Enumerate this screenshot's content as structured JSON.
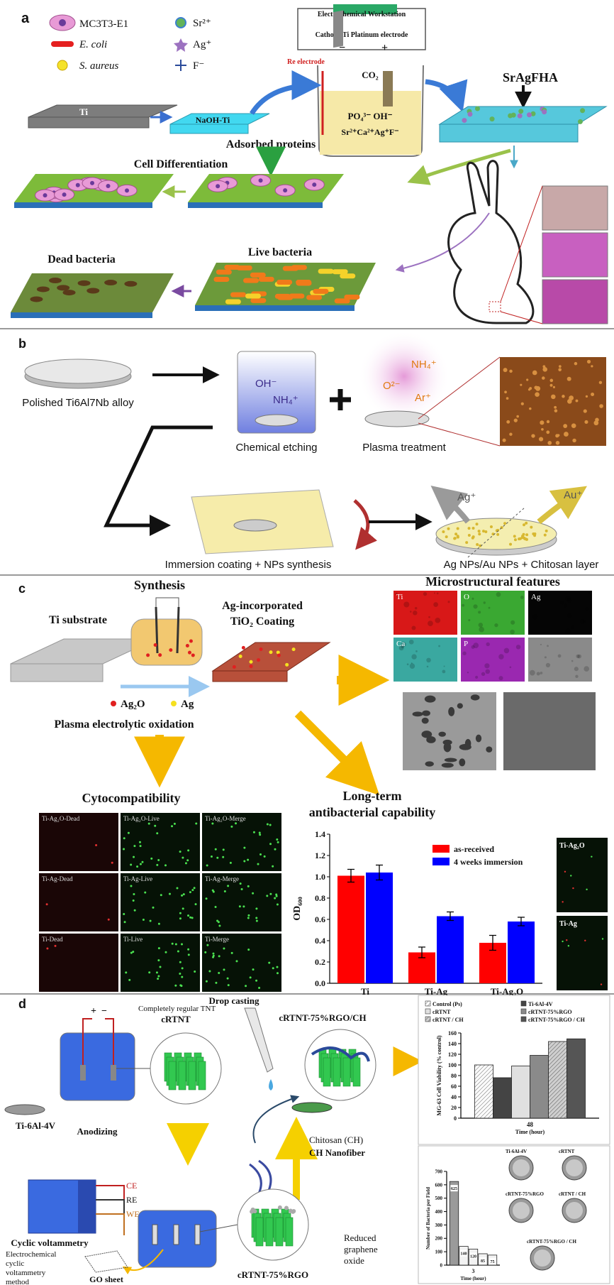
{
  "panel_a": {
    "label": "a",
    "legend": [
      "MC3T3-E1",
      "E. coli",
      "S. aureus",
      "Sr²⁺",
      "Ag⁺",
      "F⁻"
    ],
    "workstation": "Electrochemical Workstation",
    "electrodes": "Cathode Ti Platinum electrode",
    "re_electrode": "Re electrode",
    "minus": "−",
    "plus": "+",
    "gas": "CO₂",
    "anions": "PO₄³⁻ OH⁻",
    "cations": "Sr²⁺Ca²⁺Ag⁺F⁻",
    "substrate": "Ti",
    "treated": "NaOH-Ti",
    "coating": "SrAgFHA",
    "steps": [
      "Adsorbed proteins",
      "Cell Differentiation",
      "Live bacteria",
      "Dead bacteria"
    ]
  },
  "panel_b": {
    "label": "b",
    "alloy": "Polished Ti6Al7Nb alloy",
    "etch_ions": [
      "OH⁻",
      "NH₄⁺"
    ],
    "etching": "Chemical etching",
    "plasma_ions": [
      "NH₄⁺",
      "O²⁻",
      "Ar⁺"
    ],
    "plasma": "Plasma treatment",
    "immersion": "Immersion coating + NPs synthesis",
    "release_ions": [
      "Ag⁺",
      "Au⁺"
    ],
    "result": "Ag NPs/Au NPs + Chitosan layer"
  },
  "panel_c": {
    "label": "c",
    "synthesis": "Synthesis",
    "substrate": "Ti substrate",
    "coating": [
      "Ag-incorporated",
      "TiO₂ Coating"
    ],
    "particles": [
      "Ag₂O",
      "Ag"
    ],
    "process": "Plasma electrolytic oxidation",
    "micro_title": "Microstructural features",
    "eds": [
      "Ti",
      "O",
      "Ag",
      "Ca",
      "P"
    ],
    "cyto_title": "Cytocompatibility",
    "fluorescence": [
      "Ti-Ag₂O-Dead",
      "Ti-Ag₂O-Live",
      "Ti-Ag₂O-Merge",
      "Ti-Ag-Dead",
      "Ti-Ag-Live",
      "Ti-Ag-Merge",
      "Ti-Dead",
      "Ti-Live",
      "Ti-Merge"
    ],
    "side_images": [
      "Ti-Ag₂O",
      "Ti-Ag"
    ],
    "chart": {
      "type": "bar",
      "title": [
        "Long-term",
        "antibacterial capability"
      ],
      "y_label": "OD₆₀₀",
      "categories": [
        "Ti",
        "Ti-Ag",
        "Ti-Ag₂O"
      ],
      "series": [
        {
          "name": "as-received",
          "color": "#ff0000",
          "values": [
            1.01,
            0.29,
            0.38
          ],
          "errors": [
            0.06,
            0.05,
            0.07
          ]
        },
        {
          "name": "4 weeks immersion",
          "color": "#0000ff",
          "values": [
            1.04,
            0.63,
            0.58
          ],
          "errors": [
            0.07,
            0.04,
            0.04
          ]
        }
      ],
      "ylim": [
        0,
        1.4
      ],
      "yticks": [
        {
          "value": 0,
          "label": "0.0"
        },
        0.2,
        0.4,
        0.6,
        0.8,
        {
          "value": 1,
          "label": "1.0"
        },
        1.2,
        1.4
      ],
      "legend": "upper right"
    }
  },
  "panel_d": {
    "label": "d",
    "power": [
      "+",
      "−"
    ],
    "tnt": "Completely regular TNT",
    "crtnt": "cRTNT",
    "drop": "Drop casting",
    "final": "cRTNT-75%RGO/CH",
    "alloy": "Ti-6Al-4V",
    "anodizing": "Anodizing",
    "chitosan": [
      "Chitosan (CH)",
      "CH Nanofiber"
    ],
    "cv": "Cyclic voltammetry",
    "electrodes": [
      "CE",
      "RE",
      "WE"
    ],
    "cv_method": [
      "Electrochemical",
      "cyclic",
      "voltammetry",
      "method"
    ],
    "go": "GO sheet",
    "rgo": "cRTNT-75%RGO",
    "rgo_note": [
      "Reduced",
      "graphene",
      "oxide"
    ],
    "viability": {
      "type": "bar",
      "y_label": "MG-63 Cell Viability (% control)",
      "x_label": "Time (hour)",
      "categories": [
        "48"
      ],
      "series": [
        {
          "name": "Control (Ps)",
          "color": "#ffffff",
          "hatch": true,
          "values": [
            100
          ]
        },
        {
          "name": "Ti-6Al-4V",
          "color": "#444444",
          "values": [
            76
          ]
        },
        {
          "name": "cRTNT",
          "color": "#e0e0e0",
          "values": [
            98
          ]
        },
        {
          "name": "cRTNT-75%RGO",
          "color": "#8a8a8a",
          "values": [
            118
          ]
        },
        {
          "name": "cRTNT / CH",
          "color": "#cfcfcf",
          "hatch": true,
          "values": [
            144
          ]
        },
        {
          "name": "cRTNT-75%RGO / CH",
          "color": "#555555",
          "values": [
            149
          ]
        }
      ],
      "ylim": [
        0,
        160
      ],
      "yticks": [
        0,
        20,
        40,
        60,
        80,
        100,
        120,
        140,
        160
      ]
    },
    "bacteria": {
      "type": "bar",
      "y_label": "Number of Bacteria per Field",
      "x_label": "Time (hour)",
      "categories": [
        "3"
      ],
      "series": [
        {
          "name": "Ti-6Al-4V",
          "color": "#9a9a9a",
          "values": [
            625
          ]
        },
        {
          "name": "cRTNT",
          "color": "#f2f2f2",
          "values": [
            140
          ]
        },
        {
          "name": "cRTNT-75%RGO",
          "color": "#f2f2f2",
          "values": [
            120
          ]
        },
        {
          "name": "cRTNT / CH",
          "color": "#f2f2f2",
          "values": [
            85
          ]
        },
        {
          "name": "cRTNT-75%RGO / CH",
          "color": "#f2f2f2",
          "values": [
            75
          ]
        }
      ],
      "ylim": [
        0,
        700
      ],
      "yticks": [
        0,
        100,
        200,
        300,
        400,
        500,
        600,
        700
      ],
      "show_values": true
    }
  }
}
